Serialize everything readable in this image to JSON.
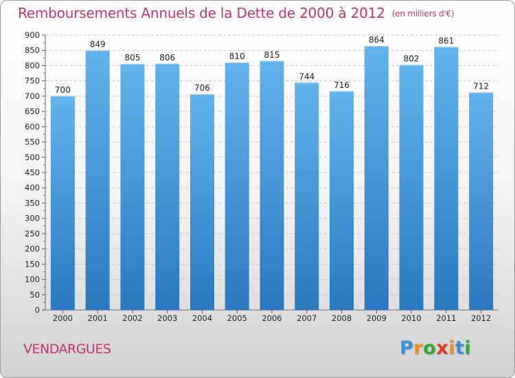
{
  "title": "Remboursements Annuels de la Dette de 2000 à 2012",
  "unit_note": "(en milliers d'€)",
  "commune": "VENDARGUES",
  "logo": {
    "letters": [
      "P",
      "r",
      "o",
      "x",
      "i",
      "t",
      "i"
    ],
    "colors": [
      "#3a8fd6",
      "#f08c1a",
      "#39a935",
      "#e23b2e",
      "#f08c1a",
      "#3a8fd6",
      "#39a935"
    ]
  },
  "colors": {
    "bar": "#3d8fd8",
    "bar_light": "#62b3ec",
    "bar_dark": "#2a78bf",
    "grid": "#c8c8c8",
    "accent": "#c4336d"
  },
  "chart_data": {
    "type": "bar",
    "categories": [
      "2000",
      "2001",
      "2002",
      "2003",
      "2004",
      "2005",
      "2006",
      "2007",
      "2008",
      "2009",
      "2010",
      "2011",
      "2012"
    ],
    "values": [
      700,
      849,
      805,
      806,
      706,
      810,
      815,
      744,
      716,
      864,
      802,
      861,
      712
    ],
    "ylim": [
      0,
      900
    ],
    "yticks": [
      0,
      50,
      100,
      150,
      200,
      250,
      300,
      350,
      400,
      450,
      500,
      550,
      600,
      650,
      700,
      750,
      800,
      850,
      900
    ],
    "grid": true,
    "data_labels": true
  }
}
